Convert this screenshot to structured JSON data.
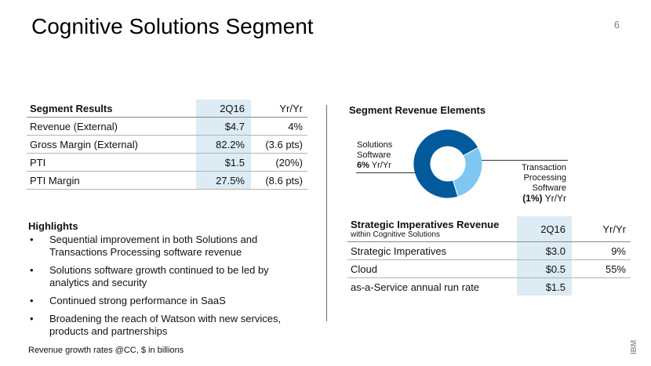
{
  "page": {
    "title": "Cognitive Solutions Segment",
    "number": "6"
  },
  "segment_results": {
    "header": {
      "label": "Segment Results",
      "q": "2Q16",
      "yy": "Yr/Yr"
    },
    "rows": [
      {
        "label": "Revenue (External)",
        "q": "$4.7",
        "yy": "4%"
      },
      {
        "label": "Gross Margin (External)",
        "q": "82.2%",
        "yy": "(3.6 pts)"
      },
      {
        "label": "PTI",
        "q": "$1.5",
        "yy": "(20%)"
      },
      {
        "label": "PTI Margin",
        "q": "27.5%",
        "yy": "(8.6 pts)"
      }
    ]
  },
  "highlights": {
    "title": "Highlights",
    "items": [
      "Sequential improvement in both Solutions and Transactions Processing software revenue",
      "Solutions software growth continued to be led by analytics and security",
      "Continued strong performance in SaaS",
      "Broadening the reach of Watson with new services, products and partnerships"
    ]
  },
  "footnote": "Revenue growth rates @CC, $ in billions",
  "segment_revenue": {
    "title": "Segment Revenue Elements",
    "solutions": {
      "line1": "Solutions",
      "line2": "Software",
      "pct": "6%",
      "yy": "Yr/Yr"
    },
    "transaction": {
      "line1": "Transaction",
      "line2": "Processing",
      "line3": "Software",
      "pct": "(1%)",
      "yy": "Yr/Yr"
    },
    "colors": {
      "solutions": "#005a9c",
      "transaction": "#7fc7f0"
    },
    "solutions_share": 0.72
  },
  "strategic": {
    "header": {
      "label": "Strategic Imperatives Revenue",
      "sub": "within Cognitive Solutions",
      "q": "2Q16",
      "yy": "Yr/Yr"
    },
    "rows": [
      {
        "label": "Strategic Imperatives",
        "q": "$3.0",
        "yy": "9%"
      },
      {
        "label": "Cloud",
        "q": "$0.5",
        "yy": "55%"
      },
      {
        "label": "as-a-Service annual run rate",
        "q": "$1.5",
        "yy": ""
      }
    ]
  },
  "logo": {
    "text": "IBM"
  }
}
